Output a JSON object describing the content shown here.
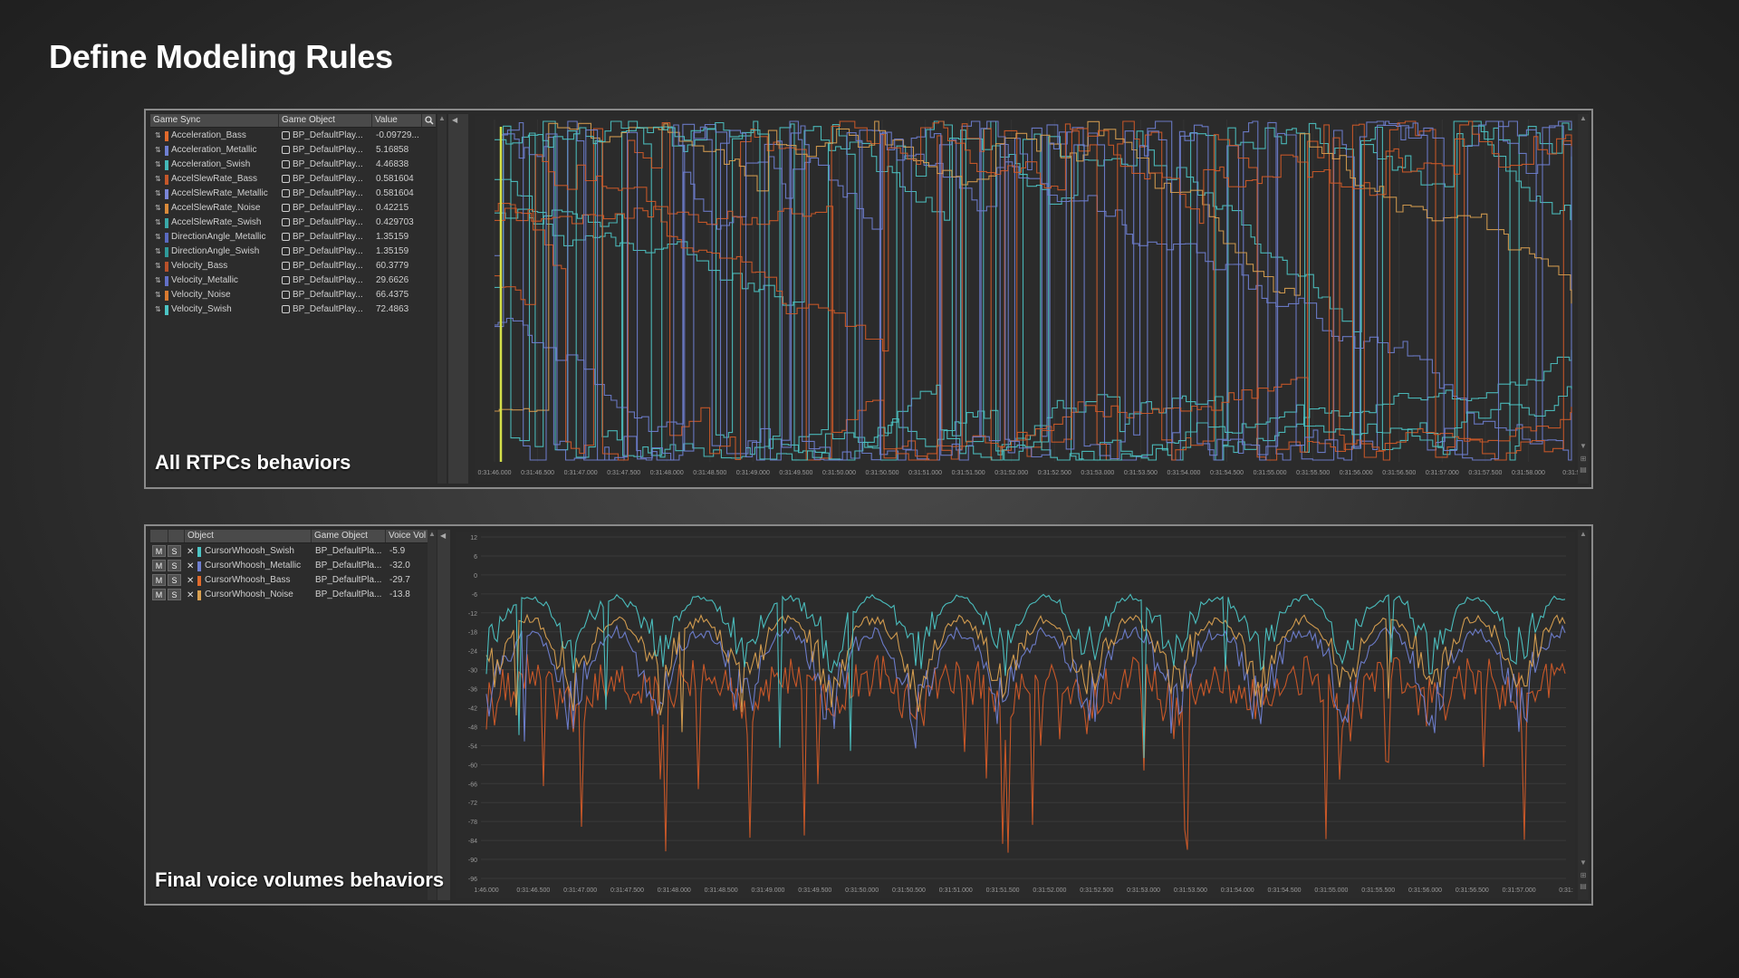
{
  "slide": {
    "title": "Define Modeling Rules"
  },
  "top_panel": {
    "label": "All RTPCs behaviors",
    "columns": [
      "Game Sync",
      "Game Object",
      "Value"
    ],
    "rows": [
      {
        "name": "Acceleration_Bass",
        "object": "BP_DefaultPlay...",
        "value": "-0.09729...",
        "color": "#e06a2c"
      },
      {
        "name": "Acceleration_Metallic",
        "object": "BP_DefaultPlay...",
        "value": "5.16858",
        "color": "#6f7fd1"
      },
      {
        "name": "Acceleration_Swish",
        "object": "BP_DefaultPlay...",
        "value": "4.46838",
        "color": "#44b8b8"
      },
      {
        "name": "AccelSlewRate_Bass",
        "object": "BP_DefaultPlay...",
        "value": "0.581604",
        "color": "#c4572a"
      },
      {
        "name": "AccelSlewRate_Metallic",
        "object": "BP_DefaultPlay...",
        "value": "0.581604",
        "color": "#7a86d8"
      },
      {
        "name": "AccelSlewRate_Noise",
        "object": "BP_DefaultPlay...",
        "value": "0.42215",
        "color": "#d98a3a"
      },
      {
        "name": "AccelSlewRate_Swish",
        "object": "BP_DefaultPlay...",
        "value": "0.429703",
        "color": "#3aa8a8"
      },
      {
        "name": "DirectionAngle_Metallic",
        "object": "BP_DefaultPlay...",
        "value": "1.35159",
        "color": "#5a6ac0"
      },
      {
        "name": "DirectionAngle_Swish",
        "object": "BP_DefaultPlay...",
        "value": "1.35159",
        "color": "#2f9a9a"
      },
      {
        "name": "Velocity_Bass",
        "object": "BP_DefaultPlay...",
        "value": "60.3779",
        "color": "#b8512a"
      },
      {
        "name": "Velocity_Metallic",
        "object": "BP_DefaultPlay...",
        "value": "29.6626",
        "color": "#6270c8"
      },
      {
        "name": "Velocity_Noise",
        "object": "BP_DefaultPlay...",
        "value": "66.4375",
        "color": "#d97a30"
      },
      {
        "name": "Velocity_Swish",
        "object": "BP_DefaultPlay...",
        "value": "72.4863",
        "color": "#4cc4c4"
      }
    ],
    "time_ticks": [
      "0:31:46.000",
      "0:31:46.500",
      "0:31:47.000",
      "0:31:47.500",
      "0:31:48.000",
      "0:31:48.500",
      "0:31:49.000",
      "0:31:49.500",
      "0:31:50.000",
      "0:31:50.500",
      "0:31:51.000",
      "0:31:51.500",
      "0:31:52.000",
      "0:31:52.500",
      "0:31:53.000",
      "0:31:53.500",
      "0:31:54.000",
      "0:31:54.500",
      "0:31:55.000",
      "0:31:55.500",
      "0:31:56.000",
      "0:31:56.500",
      "0:31:57.000",
      "0:31:57.500",
      "0:31:58.000",
      "0:31:5"
    ]
  },
  "bottom_panel": {
    "label": "Final voice volumes behaviors",
    "columns": [
      "Object",
      "Game Object",
      "Voice Vol"
    ],
    "mute_label": "M",
    "solo_label": "S",
    "rows": [
      {
        "name": "CursorWhoosh_Swish",
        "object": "BP_DefaultPla...",
        "value": "-5.9",
        "color": "#4cc4c4"
      },
      {
        "name": "CursorWhoosh_Metallic",
        "object": "BP_DefaultPla...",
        "value": "-32.0",
        "color": "#6f7fd1"
      },
      {
        "name": "CursorWhoosh_Bass",
        "object": "BP_DefaultPla...",
        "value": "-29.7",
        "color": "#e06a2c"
      },
      {
        "name": "CursorWhoosh_Noise",
        "object": "BP_DefaultPla...",
        "value": "-13.8",
        "color": "#d9a050"
      }
    ],
    "y_ticks": [
      "12",
      "6",
      "0",
      "-6",
      "-12",
      "-18",
      "-24",
      "-30",
      "-36",
      "-42",
      "-48",
      "-54",
      "-60",
      "-66",
      "-72",
      "-78",
      "-84",
      "-90",
      "-96"
    ],
    "time_ticks": [
      "1:46.000",
      "0:31:46.500",
      "0:31:47.000",
      "0:31:47.500",
      "0:31:48.000",
      "0:31:48.500",
      "0:31:49.000",
      "0:31:49.500",
      "0:31:50.000",
      "0:31:50.500",
      "0:31:51.000",
      "0:31:51.500",
      "0:31:52.000",
      "0:31:52.500",
      "0:31:53.000",
      "0:31:53.500",
      "0:31:54.000",
      "0:31:54.500",
      "0:31:55.000",
      "0:31:55.500",
      "0:31:56.000",
      "0:31:56.500",
      "0:31:57.000",
      "0:31:"
    ]
  },
  "colors": {
    "swish": "#4cc4c4",
    "metallic": "#6f7fd1",
    "bass": "#d05a28",
    "noise": "#d9a050",
    "cursor": "#d4e04a"
  }
}
